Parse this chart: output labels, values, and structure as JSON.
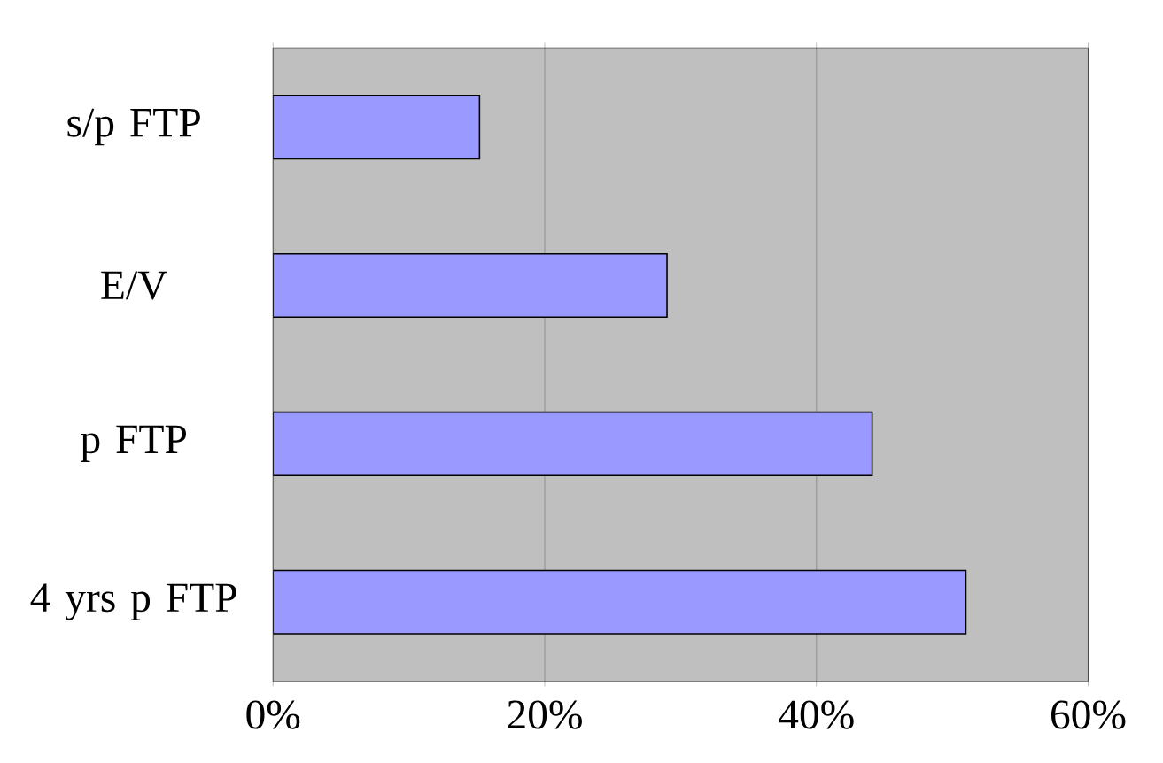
{
  "chart_data": {
    "type": "bar",
    "orientation": "horizontal",
    "categories": [
      "s/p FTP",
      "E/V",
      "p FTP",
      "4 yrs p FTP"
    ],
    "values": [
      15.2,
      29.0,
      44.1,
      51.0
    ],
    "color": "#9999ff",
    "xlim": [
      0,
      60
    ],
    "xticks": [
      {
        "value": 0,
        "label": "0%"
      },
      {
        "value": 20,
        "label": "20%"
      },
      {
        "value": 40,
        "label": "40%"
      },
      {
        "value": 60,
        "label": "60%"
      }
    ],
    "grid": "x"
  }
}
